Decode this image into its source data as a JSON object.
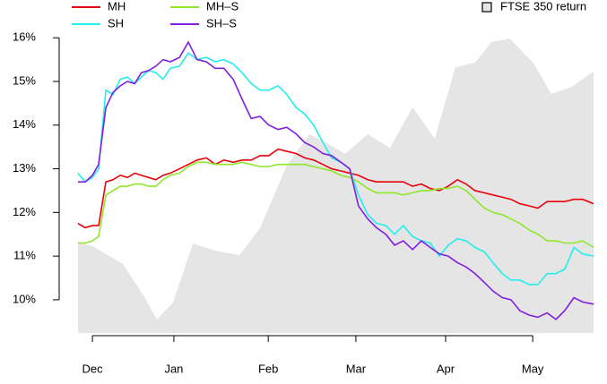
{
  "chart_data": {
    "type": "line",
    "xlim": [
      0,
      100
    ],
    "xticks": [
      {
        "value": 2.8,
        "label": "Dec"
      },
      {
        "value": 18.6,
        "label": "Jan"
      },
      {
        "value": 36.9,
        "label": "Feb"
      },
      {
        "value": 53.9,
        "label": "Mar"
      },
      {
        "value": 71.3,
        "label": "Apr"
      },
      {
        "value": 88.2,
        "label": "May"
      }
    ],
    "ylim": [
      9.24,
      16.25
    ],
    "yticks": [
      {
        "value": 10,
        "label": "10%"
      },
      {
        "value": 11,
        "label": "11%"
      },
      {
        "value": 12,
        "label": "12%"
      },
      {
        "value": 13,
        "label": "13%"
      },
      {
        "value": 14,
        "label": "14%"
      },
      {
        "value": 15,
        "label": "15%"
      },
      {
        "value": 16,
        "label": "16%"
      }
    ],
    "y2lim": [
      0,
      100
    ],
    "x": [
      0,
      1.4,
      2.8,
      4.0,
      5.4,
      6.8,
      8.2,
      9.6,
      11.0,
      12.3,
      13.7,
      15.1,
      16.5,
      17.9,
      19.7,
      21.4,
      23.1,
      24.9,
      26.6,
      28.3,
      30.1,
      31.8,
      33.6,
      35.3,
      37.0,
      38.8,
      40.5,
      42.3,
      44.0,
      45.7,
      47.5,
      49.2,
      51.0,
      52.7,
      54.4,
      56.2,
      57.9,
      59.7,
      61.4,
      63.1,
      64.9,
      66.6,
      68.3,
      70.1,
      71.8,
      73.6,
      75.3,
      77.0,
      78.8,
      80.5,
      82.3,
      84.0,
      85.7,
      87.5,
      89.2,
      91.0,
      92.7,
      94.4,
      96.2,
      97.9,
      100
    ],
    "area": {
      "name": "FTSE 350 return",
      "color": "#e5e5e5",
      "axis": "y2",
      "x": [
        0,
        2.8,
        8.7,
        12.7,
        15.3,
        18.4,
        22.3,
        26.6,
        31.3,
        35.3,
        40.5,
        44.9,
        48.3,
        51.8,
        56.2,
        60.5,
        64.9,
        69.2,
        73.2,
        77.0,
        80.2,
        83.7,
        88.3,
        91.8,
        95.8,
        100
      ],
      "values": [
        29.8,
        28.4,
        22.5,
        12.3,
        4.4,
        9.9,
        29.2,
        26.9,
        25.4,
        34.2,
        54.7,
        64.9,
        62.0,
        58.5,
        64.9,
        60.5,
        73.7,
        63.5,
        86.8,
        88.3,
        95.0,
        96.2,
        88.3,
        78.1,
        80.4,
        85.4
      ]
    },
    "series": [
      {
        "name": "MH",
        "color": "#e8000b",
        "values": [
          11.75,
          11.65,
          11.7,
          11.7,
          12.7,
          12.75,
          12.85,
          12.8,
          12.9,
          12.85,
          12.8,
          12.75,
          12.85,
          12.9,
          13.0,
          13.1,
          13.2,
          13.25,
          13.1,
          13.2,
          13.15,
          13.2,
          13.2,
          13.3,
          13.3,
          13.45,
          13.4,
          13.35,
          13.25,
          13.2,
          13.1,
          13.0,
          12.95,
          12.9,
          12.85,
          12.75,
          12.7,
          12.7,
          12.7,
          12.7,
          12.6,
          12.65,
          12.55,
          12.5,
          12.6,
          12.75,
          12.65,
          12.5,
          12.45,
          12.4,
          12.35,
          12.3,
          12.2,
          12.15,
          12.1,
          12.25,
          12.25,
          12.25,
          12.3,
          12.3,
          12.2
        ]
      },
      {
        "name": "SH",
        "color": "#22eeee",
        "values": [
          12.9,
          12.7,
          12.8,
          13.0,
          14.8,
          14.7,
          15.05,
          15.1,
          14.95,
          15.1,
          15.25,
          15.2,
          15.05,
          15.3,
          15.35,
          15.65,
          15.5,
          15.55,
          15.45,
          15.5,
          15.4,
          15.2,
          14.95,
          14.8,
          14.8,
          14.9,
          14.7,
          14.4,
          14.25,
          14.0,
          13.6,
          13.25,
          13.15,
          13.0,
          12.4,
          11.95,
          11.75,
          11.7,
          11.5,
          11.7,
          11.45,
          11.35,
          11.3,
          11.0,
          11.25,
          11.4,
          11.35,
          11.2,
          11.1,
          10.85,
          10.6,
          10.45,
          10.45,
          10.35,
          10.35,
          10.6,
          10.6,
          10.7,
          11.2,
          11.05,
          11.0
        ]
      },
      {
        "name": "MH–S",
        "color": "#8fe82a",
        "values": [
          11.3,
          11.3,
          11.35,
          11.45,
          12.4,
          12.5,
          12.6,
          12.6,
          12.65,
          12.65,
          12.6,
          12.6,
          12.75,
          12.85,
          12.9,
          13.05,
          13.15,
          13.15,
          13.1,
          13.1,
          13.1,
          13.15,
          13.1,
          13.05,
          13.05,
          13.1,
          13.1,
          13.1,
          13.1,
          13.05,
          13.0,
          12.95,
          12.85,
          12.8,
          12.7,
          12.55,
          12.45,
          12.45,
          12.45,
          12.4,
          12.45,
          12.5,
          12.5,
          12.55,
          12.55,
          12.6,
          12.5,
          12.3,
          12.1,
          12.0,
          11.95,
          11.85,
          11.75,
          11.6,
          11.5,
          11.35,
          11.35,
          11.3,
          11.3,
          11.35,
          11.2
        ]
      },
      {
        "name": "SH–S",
        "color": "#7f1fe0",
        "values": [
          12.7,
          12.7,
          12.85,
          13.1,
          14.4,
          14.75,
          14.9,
          15.0,
          14.95,
          15.2,
          15.25,
          15.35,
          15.5,
          15.45,
          15.55,
          15.9,
          15.5,
          15.45,
          15.3,
          15.3,
          15.05,
          14.6,
          14.15,
          14.2,
          14.0,
          13.9,
          13.95,
          13.8,
          13.6,
          13.5,
          13.35,
          13.3,
          13.15,
          13.0,
          12.15,
          11.85,
          11.65,
          11.5,
          11.25,
          11.35,
          11.15,
          11.35,
          11.2,
          11.05,
          11.0,
          10.85,
          10.75,
          10.6,
          10.4,
          10.2,
          10.05,
          10.0,
          9.75,
          9.65,
          9.6,
          9.7,
          9.55,
          9.75,
          10.05,
          9.95,
          9.9
        ]
      }
    ],
    "legend": "top"
  }
}
